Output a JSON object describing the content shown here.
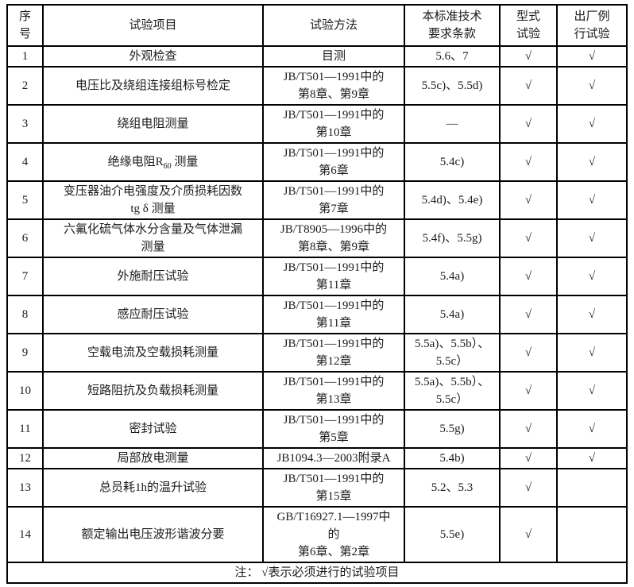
{
  "table": {
    "headers": [
      {
        "name": "col-no",
        "lines": [
          "序",
          "号"
        ]
      },
      {
        "name": "col-item",
        "lines": [
          "试验项目"
        ]
      },
      {
        "name": "col-method",
        "lines": [
          "试验方法"
        ]
      },
      {
        "name": "col-clause",
        "lines": [
          "本标准技术",
          "要求条款"
        ]
      },
      {
        "name": "col-type-test",
        "lines": [
          "型式",
          "试验"
        ]
      },
      {
        "name": "col-routine-test",
        "lines": [
          "出厂例",
          "行试验"
        ]
      }
    ],
    "check_mark": "√",
    "rows": [
      {
        "no": [
          "1"
        ],
        "item": [
          "外观检查"
        ],
        "method": [
          "目测"
        ],
        "clause": [
          "5.6、7"
        ],
        "type_test": [
          "√"
        ],
        "routine_test": [
          "√"
        ]
      },
      {
        "no": [
          "2"
        ],
        "item": [
          "电压比及绕组连接组标号检定"
        ],
        "method": [
          "JB/T501—1991中的",
          "第8章、第9章"
        ],
        "clause": [
          "5.5c)、5.5d)"
        ],
        "type_test": [
          "√"
        ],
        "routine_test": [
          "√"
        ]
      },
      {
        "no": [
          "3"
        ],
        "item": [
          "绕组电阻测量"
        ],
        "method": [
          "JB/T501—1991中的",
          "第10章"
        ],
        "clause": [
          "—"
        ],
        "type_test": [
          "√"
        ],
        "routine_test": [
          "√"
        ]
      },
      {
        "no": [
          "4"
        ],
        "item": [
          {
            "pre": "绝缘电阻R",
            "sub": "60",
            "post": " 测量"
          }
        ],
        "method": [
          "JB/T501—1991中的",
          "第6章"
        ],
        "clause": [
          "5.4c)"
        ],
        "type_test": [
          "√"
        ],
        "routine_test": [
          "√"
        ]
      },
      {
        "no": [
          "5"
        ],
        "item": [
          "变压器油介电强度及介质损耗因数",
          "tg δ 测量"
        ],
        "method": [
          "JB/T501—1991中的",
          "第7章"
        ],
        "clause": [
          "5.4d)、5.4e)"
        ],
        "type_test": [
          "√"
        ],
        "routine_test": [
          "√"
        ]
      },
      {
        "no": [
          "6"
        ],
        "item": [
          "六氟化硫气体水分含量及气体泄漏",
          "测量"
        ],
        "method": [
          "JB/T8905—1996中的",
          "第8章、第9章"
        ],
        "clause": [
          "5.4f)、5.5g)"
        ],
        "type_test": [
          "√"
        ],
        "routine_test": [
          "√"
        ]
      },
      {
        "no": [
          "7"
        ],
        "item": [
          "外施耐压试验"
        ],
        "method": [
          "JB/T501—1991中的",
          "第11章"
        ],
        "clause": [
          "5.4a)"
        ],
        "type_test": [
          "√"
        ],
        "routine_test": [
          "√"
        ]
      },
      {
        "no": [
          "8"
        ],
        "item": [
          "感应耐压试验"
        ],
        "method": [
          "JB/T501—1991中的",
          "第11章"
        ],
        "clause": [
          "5.4a)"
        ],
        "type_test": [
          "√"
        ],
        "routine_test": [
          "√"
        ]
      },
      {
        "no": [
          "9"
        ],
        "item": [
          "空载电流及空载损耗测量"
        ],
        "method": [
          "JB/T501—1991中的",
          "第12章"
        ],
        "clause": [
          "5.5a)、5.5b）、",
          "5.5c）"
        ],
        "type_test": [
          "√"
        ],
        "routine_test": [
          "√"
        ]
      },
      {
        "no": [
          "10"
        ],
        "item": [
          "短路阻抗及负载损耗测量"
        ],
        "method": [
          "JB/T501—1991中的",
          "第13章"
        ],
        "clause": [
          "5.5a)、5.5b）、",
          "5.5c）"
        ],
        "type_test": [
          "√"
        ],
        "routine_test": [
          "√"
        ]
      },
      {
        "no": [
          "11"
        ],
        "item": [
          "密封试验"
        ],
        "method": [
          "JB/T501—1991中的",
          "第5章"
        ],
        "clause": [
          "5.5g)"
        ],
        "type_test": [
          "√"
        ],
        "routine_test": [
          "√"
        ]
      },
      {
        "no": [
          "12"
        ],
        "item": [
          "局部放电测量"
        ],
        "method": [
          "JB1094.3—2003附录A"
        ],
        "clause": [
          "5.4b)"
        ],
        "type_test": [
          "√"
        ],
        "routine_test": [
          "√"
        ]
      },
      {
        "no": [
          "13"
        ],
        "item": [
          "总员耗1h的温升试验"
        ],
        "method": [
          "JB/T501—1991中的",
          "第15章"
        ],
        "clause": [
          "5.2、5.3"
        ],
        "type_test": [
          "√"
        ],
        "routine_test": [
          ""
        ]
      },
      {
        "no": [
          "14"
        ],
        "item": [
          "额定输出电压波形谐波分要"
        ],
        "method": [
          "GB/T16927.1—1997中",
          "的",
          "第6章、第2章"
        ],
        "clause": [
          "5.5e)"
        ],
        "type_test": [
          "√"
        ],
        "routine_test": [
          ""
        ]
      }
    ],
    "note": "注： √表示必须进行的试验项目"
  }
}
